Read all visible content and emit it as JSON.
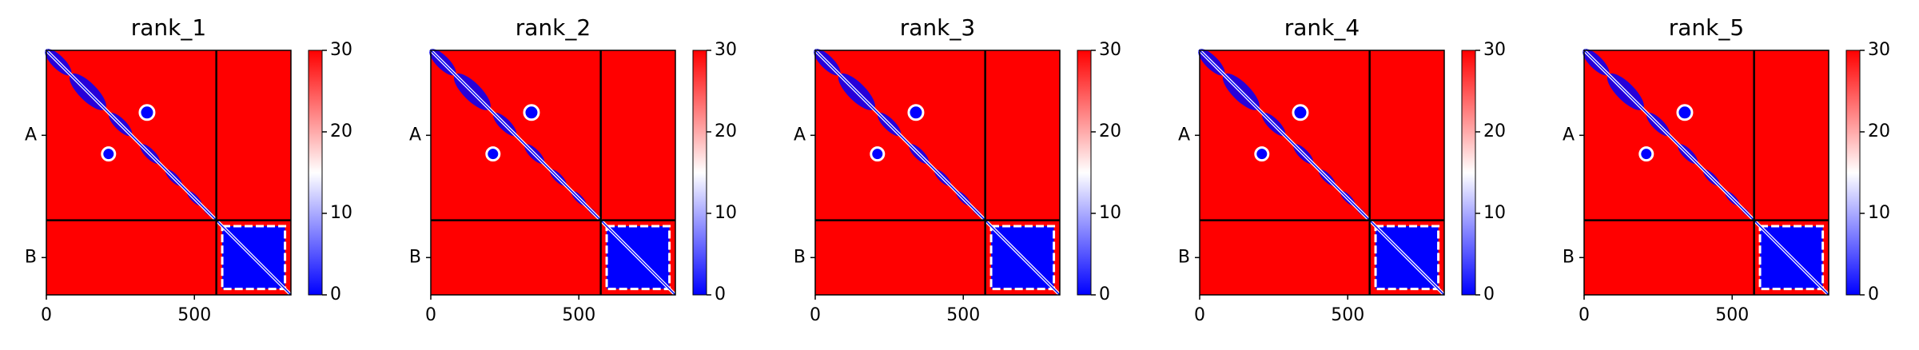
{
  "chart_data": [
    {
      "type": "heatmap",
      "title": "rank_1",
      "xlim": [
        0,
        826
      ],
      "ylim": [
        826,
        0
      ],
      "xticks": [
        0,
        500
      ],
      "chains": [
        {
          "name": "A",
          "start": 0,
          "end": 574
        },
        {
          "name": "B",
          "start": 574,
          "end": 826
        }
      ],
      "clim": [
        0,
        30
      ],
      "cticks": [
        0,
        10,
        20,
        30
      ],
      "colormap": [
        "#0000ff",
        "#ffffff",
        "#ff0000"
      ]
    },
    {
      "type": "heatmap",
      "title": "rank_2",
      "xlim": [
        0,
        826
      ],
      "ylim": [
        826,
        0
      ],
      "xticks": [
        0,
        500
      ],
      "chains": [
        {
          "name": "A",
          "start": 0,
          "end": 574
        },
        {
          "name": "B",
          "start": 574,
          "end": 826
        }
      ],
      "clim": [
        0,
        30
      ],
      "cticks": [
        0,
        10,
        20,
        30
      ],
      "colormap": [
        "#0000ff",
        "#ffffff",
        "#ff0000"
      ]
    },
    {
      "type": "heatmap",
      "title": "rank_3",
      "xlim": [
        0,
        826
      ],
      "ylim": [
        826,
        0
      ],
      "xticks": [
        0,
        500
      ],
      "chains": [
        {
          "name": "A",
          "start": 0,
          "end": 574
        },
        {
          "name": "B",
          "start": 574,
          "end": 826
        }
      ],
      "clim": [
        0,
        30
      ],
      "cticks": [
        0,
        10,
        20,
        30
      ],
      "colormap": [
        "#0000ff",
        "#ffffff",
        "#ff0000"
      ]
    },
    {
      "type": "heatmap",
      "title": "rank_4",
      "xlim": [
        0,
        826
      ],
      "ylim": [
        826,
        0
      ],
      "xticks": [
        0,
        500
      ],
      "chains": [
        {
          "name": "A",
          "start": 0,
          "end": 574
        },
        {
          "name": "B",
          "start": 574,
          "end": 826
        }
      ],
      "clim": [
        0,
        30
      ],
      "cticks": [
        0,
        10,
        20,
        30
      ],
      "colormap": [
        "#0000ff",
        "#ffffff",
        "#ff0000"
      ]
    },
    {
      "type": "heatmap",
      "title": "rank_5",
      "xlim": [
        0,
        826
      ],
      "ylim": [
        826,
        0
      ],
      "xticks": [
        0,
        500
      ],
      "chains": [
        {
          "name": "A",
          "start": 0,
          "end": 574
        },
        {
          "name": "B",
          "start": 574,
          "end": 826
        }
      ],
      "clim": [
        0,
        30
      ],
      "cticks": [
        0,
        10,
        20,
        30
      ],
      "colormap": [
        "#0000ff",
        "#ffffff",
        "#ff0000"
      ]
    }
  ]
}
